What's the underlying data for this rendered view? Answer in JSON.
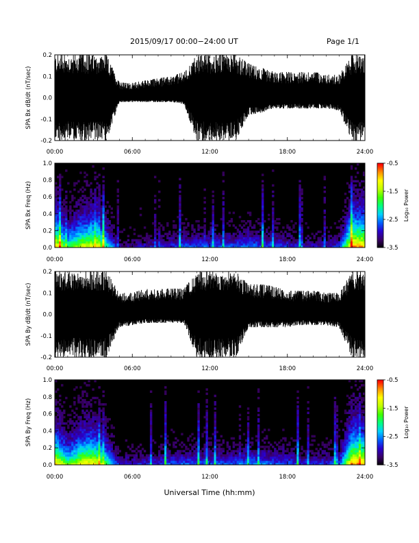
{
  "header": {
    "title": "2015/09/17  00:00−24:00 UT",
    "page": "Page 1/1"
  },
  "footer": {
    "xlabel": "Universal Time (hh:mm)"
  },
  "colorbar": {
    "label": "Log₁₀ Power",
    "ticks": [
      "-0.5",
      "-1.5",
      "-2.5",
      "-3.5"
    ],
    "colors": [
      "#000000",
      "#3a0066",
      "#2a00cc",
      "#0060ff",
      "#00d0ff",
      "#00ff80",
      "#40ff00",
      "#c0ff00",
      "#ffff00",
      "#ff9000",
      "#ff0000"
    ]
  },
  "chart_data": [
    {
      "type": "line",
      "ylabel": "SPA Bx dB/dt (nT/sec)",
      "xticks": [
        "00:00",
        "06:00",
        "12:00",
        "18:00",
        "24:00"
      ],
      "xlim": [
        0,
        24
      ],
      "ylim": [
        -0.2,
        0.2
      ],
      "yticks": [
        "-0.2",
        "-0.1",
        "0.0",
        "0.1",
        "0.2"
      ],
      "yticks_values": [
        -0.2,
        -0.1,
        0.0,
        0.1,
        0.2
      ],
      "series": [
        {
          "x": [
            0,
            1,
            2,
            3,
            4,
            5,
            6,
            7,
            8,
            9,
            10,
            11,
            12,
            13,
            14,
            15,
            16,
            17,
            18,
            19,
            20,
            21,
            22,
            23,
            24
          ],
          "upper": [
            0.2,
            0.2,
            0.2,
            0.2,
            0.2,
            0.07,
            0.07,
            0.08,
            0.09,
            0.1,
            0.12,
            0.2,
            0.2,
            0.2,
            0.2,
            0.16,
            0.14,
            0.12,
            0.12,
            0.12,
            0.12,
            0.11,
            0.11,
            0.2,
            0.2
          ],
          "lower": [
            -0.2,
            -0.2,
            -0.2,
            -0.2,
            -0.2,
            -0.02,
            -0.02,
            -0.02,
            -0.02,
            -0.02,
            -0.03,
            -0.2,
            -0.2,
            -0.2,
            -0.2,
            -0.08,
            -0.07,
            -0.05,
            -0.05,
            -0.05,
            -0.05,
            -0.05,
            -0.06,
            -0.2,
            -0.2
          ]
        }
      ],
      "color": "#000000"
    },
    {
      "type": "heatmap",
      "ylabel": "SPA Bx Freq (Hz)",
      "xticks": [
        "00:00",
        "06:00",
        "12:00",
        "18:00",
        "24:00"
      ],
      "xlim": [
        0,
        24
      ],
      "ylim": [
        0.0,
        1.0
      ],
      "yticks": [
        "0.0",
        "0.2",
        "0.4",
        "0.6",
        "0.8",
        "1.0"
      ],
      "yticks_values": [
        0.0,
        0.2,
        0.4,
        0.6,
        0.8,
        1.0
      ],
      "zlim": [
        -3.5,
        -0.5
      ],
      "time_hours": [
        0,
        1,
        2,
        3,
        4,
        5,
        6,
        7,
        8,
        9,
        10,
        11,
        12,
        13,
        14,
        15,
        16,
        17,
        18,
        19,
        20,
        21,
        22,
        23,
        24
      ],
      "activity": [
        0.9,
        0.55,
        0.75,
        0.8,
        0.55,
        0.15,
        0.15,
        0.2,
        0.2,
        0.25,
        0.3,
        0.3,
        0.3,
        0.3,
        0.3,
        0.35,
        0.3,
        0.3,
        0.25,
        0.2,
        0.2,
        0.2,
        0.25,
        0.95,
        0.9
      ]
    },
    {
      "type": "line",
      "ylabel": "SPA By dB/dt (nT/sec)",
      "xticks": [
        "00:00",
        "06:00",
        "12:00",
        "18:00",
        "24:00"
      ],
      "xlim": [
        0,
        24
      ],
      "ylim": [
        -0.2,
        0.2
      ],
      "yticks": [
        "-0.2",
        "-0.1",
        "0.0",
        "0.1",
        "0.2"
      ],
      "yticks_values": [
        -0.2,
        -0.1,
        0.0,
        0.1,
        0.2
      ],
      "series": [
        {
          "x": [
            0,
            1,
            2,
            3,
            4,
            5,
            6,
            7,
            8,
            9,
            10,
            11,
            12,
            13,
            14,
            15,
            16,
            17,
            18,
            19,
            20,
            21,
            22,
            23,
            24
          ],
          "upper": [
            0.2,
            0.2,
            0.2,
            0.2,
            0.2,
            0.1,
            0.1,
            0.12,
            0.12,
            0.12,
            0.12,
            0.2,
            0.2,
            0.2,
            0.2,
            0.14,
            0.14,
            0.13,
            0.11,
            0.11,
            0.11,
            0.1,
            0.1,
            0.2,
            0.2
          ],
          "lower": [
            -0.2,
            -0.2,
            -0.2,
            -0.2,
            -0.2,
            -0.06,
            -0.05,
            -0.04,
            -0.04,
            -0.04,
            -0.04,
            -0.2,
            -0.2,
            -0.2,
            -0.2,
            -0.06,
            -0.06,
            -0.06,
            -0.06,
            -0.05,
            -0.05,
            -0.05,
            -0.06,
            -0.2,
            -0.2
          ]
        }
      ],
      "color": "#000000"
    },
    {
      "type": "heatmap",
      "ylabel": "SPA By Freq (Hz)",
      "xticks": [
        "00:00",
        "06:00",
        "12:00",
        "18:00",
        "24:00"
      ],
      "xlim": [
        0,
        24
      ],
      "ylim": [
        0.0,
        1.0
      ],
      "yticks": [
        "0.0",
        "0.2",
        "0.4",
        "0.6",
        "0.8",
        "1.0"
      ],
      "yticks_values": [
        0.0,
        0.2,
        0.4,
        0.6,
        0.8,
        1.0
      ],
      "zlim": [
        -3.5,
        -0.5
      ],
      "time_hours": [
        0,
        1,
        2,
        3,
        4,
        5,
        6,
        7,
        8,
        9,
        10,
        11,
        12,
        13,
        14,
        15,
        16,
        17,
        18,
        19,
        20,
        21,
        22,
        23,
        24
      ],
      "activity": [
        0.9,
        0.6,
        0.8,
        0.85,
        0.6,
        0.2,
        0.2,
        0.25,
        0.25,
        0.3,
        0.3,
        0.3,
        0.3,
        0.3,
        0.3,
        0.35,
        0.35,
        0.3,
        0.3,
        0.25,
        0.25,
        0.25,
        0.3,
        0.95,
        0.9
      ]
    }
  ]
}
